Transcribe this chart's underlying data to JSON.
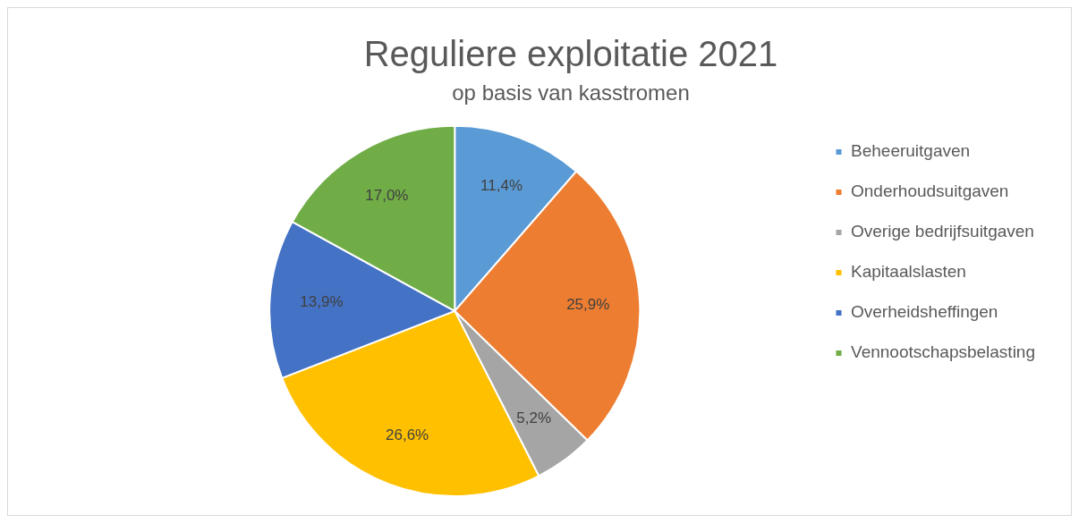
{
  "chart_data": {
    "type": "pie",
    "title": "Reguliere exploitatie 2021",
    "subtitle": "op basis van kasstromen",
    "categories": [
      "Beheeruitgaven",
      "Onderhoudsuitgaven",
      "Overige bedrijfsuitgaven",
      "Kapitaalslasten",
      "Overheidsheffingen",
      "Vennootschapsbelasting"
    ],
    "values": [
      11.4,
      25.9,
      5.2,
      26.6,
      13.9,
      17.0
    ],
    "value_labels": [
      "11,4%",
      "25,9%",
      "5,2%",
      "26,6%",
      "13,9%",
      "17,0%"
    ],
    "colors": [
      "#5b9bd5",
      "#ed7d31",
      "#a5a5a5",
      "#ffc000",
      "#4472c4",
      "#70ad47"
    ],
    "legend": "right"
  }
}
